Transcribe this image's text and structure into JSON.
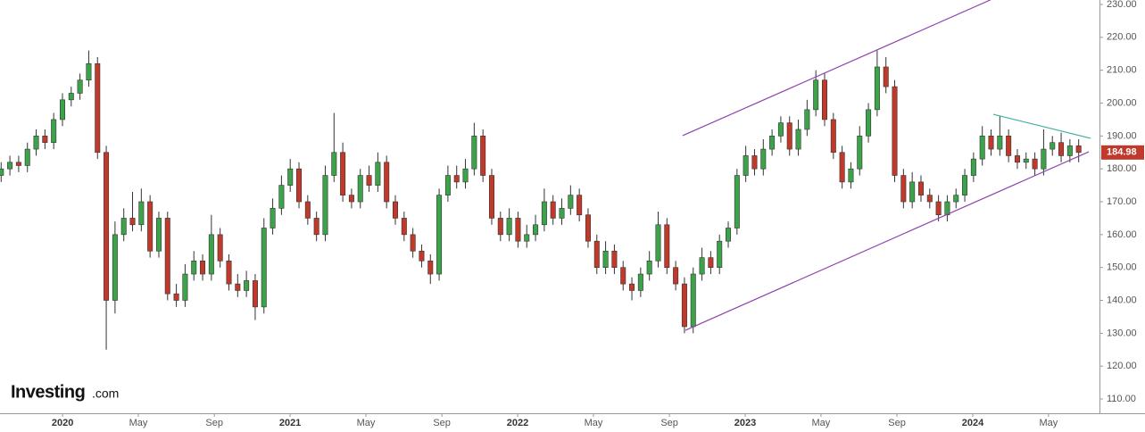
{
  "chart_data": {
    "type": "candlestick",
    "logo": "Investing",
    "logo_suffix": ".com",
    "last_price": 184.98,
    "up_color": "#3ca34a",
    "down_color": "#c0392b",
    "channel_color": "#8e44ad",
    "triangle_color": "#3fae9e",
    "xlim": [
      2019.725,
      2024.557
    ],
    "ylim": [
      105.66,
      231.36
    ],
    "xticks": [
      2020,
      {
        "value": 2020.333,
        "label": "May"
      },
      {
        "value": 2020.667,
        "label": "Sep"
      },
      2021,
      {
        "value": 2021.333,
        "label": "May"
      },
      {
        "value": 2021.667,
        "label": "Sep"
      },
      2022,
      {
        "value": 2022.333,
        "label": "May"
      },
      {
        "value": 2022.667,
        "label": "Sep"
      },
      2023,
      {
        "value": 2023.333,
        "label": "May"
      },
      {
        "value": 2023.667,
        "label": "Sep"
      },
      2024,
      {
        "value": 2024.333,
        "label": "May"
      }
    ],
    "yticks": [
      {
        "value": 110,
        "label": "110.00"
      },
      {
        "value": 120,
        "label": "120.00"
      },
      {
        "value": 130,
        "label": "130.00"
      },
      {
        "value": 140,
        "label": "140.00"
      },
      {
        "value": 150,
        "label": "150.00"
      },
      {
        "value": 160,
        "label": "160.00"
      },
      {
        "value": 170,
        "label": "170.00"
      },
      {
        "value": 180,
        "label": "180.00"
      },
      {
        "value": 190,
        "label": "190.00"
      },
      {
        "value": 200,
        "label": "200.00"
      },
      {
        "value": 210,
        "label": "210.00"
      },
      {
        "value": 220,
        "label": "220.00"
      },
      {
        "value": 230,
        "label": "230.00"
      }
    ],
    "x": [
      2019.73,
      2019.7685,
      2019.807,
      2019.8455,
      2019.884,
      2019.9225,
      2019.961,
      2019.9995,
      2020.038,
      2020.0765,
      2020.115,
      2020.1535,
      2020.192,
      2020.2305,
      2020.269,
      2020.3075,
      2020.346,
      2020.3845,
      2020.423,
      2020.4615,
      2020.5,
      2020.5385,
      2020.577,
      2020.6155,
      2020.654,
      2020.6925,
      2020.731,
      2020.7695,
      2020.808,
      2020.8465,
      2020.885,
      2020.9235,
      2020.962,
      2021.0005,
      2021.039,
      2021.0775,
      2021.116,
      2021.1545,
      2021.193,
      2021.2315,
      2021.27,
      2021.3085,
      2021.347,
      2021.3855,
      2021.424,
      2021.4625,
      2021.501,
      2021.5395,
      2021.578,
      2021.6165,
      2021.655,
      2021.6935,
      2021.732,
      2021.7705,
      2021.809,
      2021.8475,
      2021.886,
      2021.9245,
      2021.963,
      2022.0015,
      2022.04,
      2022.0785,
      2022.117,
      2022.1555,
      2022.194,
      2022.2325,
      2022.271,
      2022.3095,
      2022.348,
      2022.3865,
      2022.425,
      2022.4635,
      2022.502,
      2022.5405,
      2022.579,
      2022.6175,
      2022.656,
      2022.6945,
      2022.733,
      2022.7715,
      2022.81,
      2022.8485,
      2022.887,
      2022.9255,
      2022.964,
      2023.0025,
      2023.041,
      2023.0795,
      2023.118,
      2023.1565,
      2023.195,
      2023.2335,
      2023.272,
      2023.3105,
      2023.349,
      2023.3875,
      2023.426,
      2023.4645,
      2023.503,
      2023.5415,
      2023.58,
      2023.6185,
      2023.657,
      2023.6955,
      2023.734,
      2023.7725,
      2023.811,
      2023.8495,
      2023.888,
      2023.9265,
      2023.965,
      2024.0035,
      2024.042,
      2024.0805,
      2024.119,
      2024.1575,
      2024.196,
      2024.2345,
      2024.273,
      2024.3115,
      2024.35,
      2024.3885,
      2024.427,
      2024.4655
    ],
    "open": [
      178,
      180,
      182,
      181,
      186,
      190,
      188,
      195,
      201,
      203,
      207,
      212,
      185,
      140,
      160,
      165,
      163,
      170,
      155,
      165,
      142,
      140,
      148,
      152,
      148,
      160,
      152,
      145,
      143,
      146,
      138,
      162,
      168,
      175,
      180,
      170,
      165,
      160,
      178,
      185,
      172,
      170,
      178,
      175,
      182,
      170,
      165,
      160,
      155,
      152,
      148,
      172,
      178,
      176,
      180,
      190,
      178,
      165,
      160,
      165,
      158,
      160,
      163,
      170,
      165,
      168,
      172,
      166,
      158,
      150,
      155,
      150,
      145,
      143,
      148,
      152,
      163,
      150,
      145,
      132,
      148,
      153,
      150,
      158,
      162,
      178,
      184,
      180,
      186,
      190,
      194,
      186,
      192,
      198,
      207,
      195,
      185,
      176,
      180,
      190,
      198,
      211,
      205,
      178,
      170,
      176,
      172,
      170,
      166,
      170,
      172,
      178,
      183,
      190,
      186,
      190,
      184,
      182,
      183,
      180,
      186,
      188,
      184,
      187
    ],
    "high": [
      182,
      184,
      184,
      188,
      192,
      192,
      197,
      203,
      205,
      209,
      216,
      214,
      187,
      164,
      168,
      173,
      174,
      172,
      167,
      167,
      145,
      151,
      155,
      154,
      166,
      162,
      154,
      148,
      149,
      148,
      165,
      171,
      178,
      183,
      182,
      172,
      167,
      181,
      197,
      188,
      174,
      180,
      181,
      185,
      184,
      172,
      167,
      162,
      157,
      154,
      174,
      181,
      181,
      183,
      194,
      192,
      180,
      167,
      168,
      167,
      163,
      166,
      174,
      172,
      171,
      175,
      174,
      168,
      160,
      158,
      157,
      152,
      147,
      150,
      155,
      167,
      165,
      152,
      147,
      150,
      156,
      155,
      160,
      164,
      180,
      187,
      186,
      189,
      192,
      196,
      196,
      195,
      201,
      210,
      209,
      197,
      187,
      182,
      193,
      200,
      216,
      214,
      207,
      180,
      179,
      178,
      174,
      172,
      172,
      174,
      180,
      185,
      193,
      192,
      196,
      192,
      186,
      185,
      185,
      192,
      190,
      191,
      189,
      189
    ],
    "low": [
      176,
      178,
      179,
      179,
      184,
      186,
      186,
      193,
      199,
      201,
      205,
      183,
      125,
      136,
      158,
      161,
      161,
      153,
      153,
      140,
      138,
      138,
      146,
      146,
      146,
      150,
      143,
      141,
      141,
      134,
      136,
      160,
      166,
      173,
      168,
      163,
      158,
      158,
      176,
      170,
      168,
      168,
      173,
      173,
      168,
      163,
      158,
      153,
      150,
      145,
      146,
      170,
      174,
      174,
      178,
      176,
      163,
      158,
      158,
      156,
      156,
      158,
      161,
      163,
      163,
      166,
      164,
      156,
      148,
      148,
      148,
      143,
      140,
      141,
      146,
      150,
      148,
      143,
      130,
      130,
      146,
      148,
      148,
      156,
      160,
      176,
      178,
      178,
      184,
      188,
      184,
      184,
      190,
      196,
      193,
      183,
      174,
      174,
      178,
      188,
      196,
      203,
      176,
      168,
      168,
      170,
      168,
      164,
      164,
      168,
      170,
      176,
      181,
      184,
      184,
      182,
      180,
      180,
      178,
      178,
      184,
      182,
      182,
      182
    ],
    "close": [
      180,
      182,
      181,
      186,
      190,
      188,
      195,
      201,
      203,
      207,
      212,
      185,
      140,
      160,
      165,
      163,
      170,
      155,
      165,
      142,
      140,
      148,
      152,
      148,
      160,
      152,
      145,
      143,
      146,
      138,
      162,
      168,
      175,
      180,
      170,
      165,
      160,
      178,
      185,
      172,
      170,
      178,
      175,
      182,
      170,
      165,
      160,
      155,
      152,
      148,
      172,
      178,
      176,
      180,
      190,
      178,
      165,
      160,
      165,
      158,
      160,
      163,
      170,
      165,
      168,
      172,
      166,
      158,
      150,
      155,
      150,
      145,
      143,
      148,
      152,
      163,
      150,
      145,
      132,
      148,
      153,
      150,
      158,
      162,
      178,
      184,
      180,
      186,
      190,
      194,
      186,
      192,
      198,
      207,
      195,
      185,
      176,
      180,
      190,
      198,
      211,
      205,
      178,
      170,
      176,
      172,
      170,
      166,
      170,
      172,
      178,
      183,
      190,
      186,
      190,
      184,
      182,
      183,
      180,
      186,
      188,
      184,
      187,
      184.98
    ],
    "trendlines": [
      {
        "color_key": "channel_color",
        "x": [
          2022.725,
          2024.078
        ],
        "y": [
          190.1,
          231.4
        ]
      },
      {
        "color_key": "channel_color",
        "x": [
          2022.737,
          2024.51
        ],
        "y": [
          130.9,
          185.2
        ]
      },
      {
        "color_key": "triangle_color",
        "x": [
          2024.09,
          2024.518
        ],
        "y": [
          196.6,
          189.3
        ]
      }
    ]
  }
}
